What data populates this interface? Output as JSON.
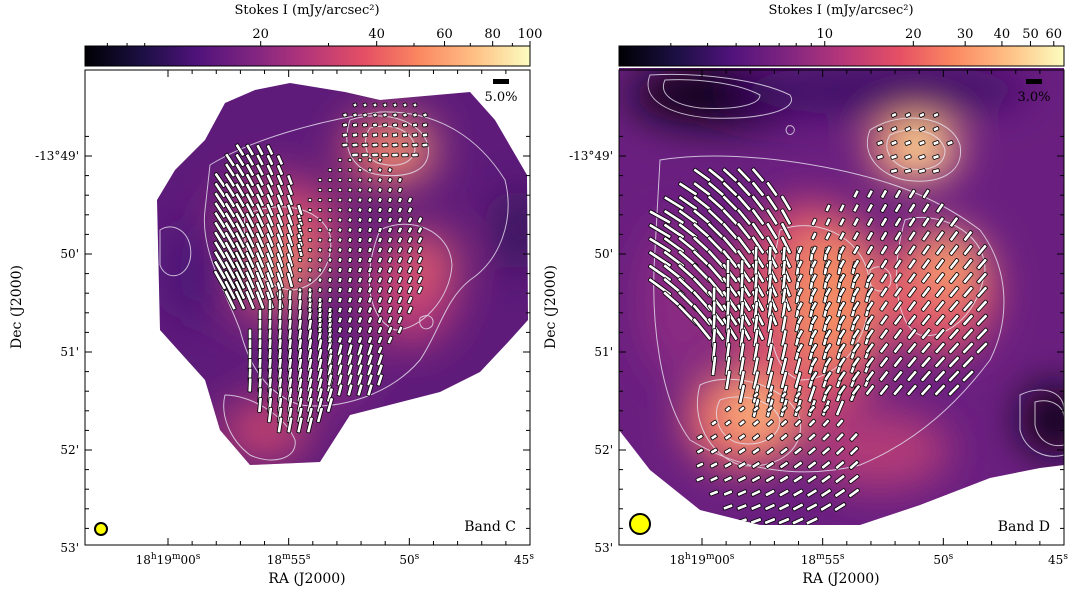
{
  "chart_data": [
    {
      "type": "heatmap",
      "panel": "left",
      "band_label": "Band C",
      "colorbar": {
        "label": "Stokes I (mJy/arcsec²)",
        "scale": "log",
        "ticks": [
          "20",
          "40",
          "60",
          "80",
          "100"
        ],
        "tick_values": [
          20,
          40,
          60,
          80,
          100
        ],
        "range": [
          7,
          100
        ],
        "colormap": "magma"
      },
      "xlabel": "RA (J2000)",
      "ylabel": "Dec (J2000)",
      "x_ticks": [
        {
          "label_main": "18",
          "label_h": "h",
          "label_m_main": "19",
          "label_m": "m",
          "label_s_main": "00",
          "label_s": "s",
          "value": 0
        },
        {
          "label_main": "18",
          "label_m": "m",
          "label_s_main": "55",
          "label_s": "s",
          "value": 5
        },
        {
          "label_main": "50",
          "label_s": "s",
          "value": 10
        },
        {
          "label_main": "45",
          "label_s": "s",
          "value": 15
        }
      ],
      "y_ticks": [
        {
          "label": "-13°49'",
          "value": 49
        },
        {
          "label": "50'",
          "value": 50
        },
        {
          "label": "51'",
          "value": 51
        },
        {
          "label": "52'",
          "value": 52
        },
        {
          "label": "53'",
          "value": 53
        }
      ],
      "polarization_scale_bar": "5.0%",
      "beam": "small"
    },
    {
      "type": "heatmap",
      "panel": "right",
      "band_label": "Band D",
      "colorbar": {
        "label": "Stokes I (mJy/arcsec²)",
        "scale": "log",
        "ticks": [
          "10",
          "20",
          "30",
          "40",
          "50",
          "60"
        ],
        "tick_values": [
          10,
          20,
          30,
          40,
          50,
          60
        ],
        "range": [
          2,
          65
        ],
        "colormap": "magma"
      },
      "xlabel": "RA (J2000)",
      "ylabel": "Dec (J2000)",
      "x_ticks": [
        {
          "label_main": "18",
          "label_h": "h",
          "label_m_main": "19",
          "label_m": "m",
          "label_s_main": "00",
          "label_s": "s",
          "value": 0
        },
        {
          "label_main": "18",
          "label_m": "m",
          "label_s_main": "55",
          "label_s": "s",
          "value": 5
        },
        {
          "label_main": "50",
          "label_s": "s",
          "value": 10
        },
        {
          "label_main": "45",
          "label_s": "s",
          "value": 15
        }
      ],
      "y_ticks": [
        {
          "label": "-13°49'",
          "value": 49
        },
        {
          "label": "50'",
          "value": 50
        },
        {
          "label": "51'",
          "value": 51
        },
        {
          "label": "52'",
          "value": 52
        },
        {
          "label": "53'",
          "value": 53
        }
      ],
      "polarization_scale_bar": "3.0%",
      "beam": "large"
    }
  ],
  "colors": {
    "beam_fill": "#ffff00",
    "contour": "#e8e4f0",
    "vector_fill": "#ffffff",
    "vector_stroke": "#000000",
    "background": "#ffffff"
  }
}
